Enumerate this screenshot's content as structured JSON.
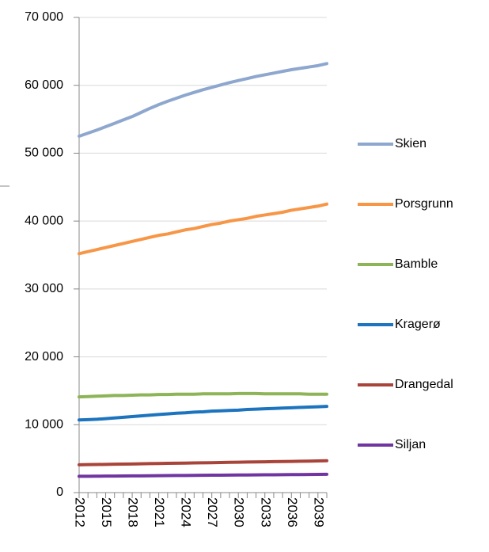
{
  "chart_data": {
    "type": "line",
    "categories": [
      "2012",
      null,
      null,
      "2015",
      null,
      null,
      "2018",
      null,
      null,
      "2021",
      null,
      null,
      "2024",
      null,
      null,
      "2027",
      null,
      null,
      "2030",
      null,
      null,
      "2033",
      null,
      null,
      "2036",
      null,
      null,
      "2039",
      null
    ],
    "series": [
      {
        "name": "Skien",
        "color": "#8EA7CE",
        "values": [
          52500,
          52950,
          53400,
          53900,
          54400,
          54900,
          55400,
          56000,
          56600,
          57150,
          57650,
          58100,
          58550,
          58950,
          59350,
          59700,
          60050,
          60400,
          60700,
          61000,
          61300,
          61550,
          61800,
          62050,
          62300,
          62500,
          62700,
          62900,
          63200
        ]
      },
      {
        "name": "Porsgrunn",
        "color": "#F79646",
        "values": [
          35200,
          35500,
          35800,
          36100,
          36400,
          36700,
          37000,
          37300,
          37600,
          37900,
          38100,
          38400,
          38700,
          38900,
          39200,
          39500,
          39700,
          40000,
          40200,
          40400,
          40700,
          40900,
          41100,
          41300,
          41600,
          41800,
          42000,
          42200,
          42500
        ]
      },
      {
        "name": "Bamble",
        "color": "#8DB457",
        "values": [
          14100,
          14150,
          14200,
          14250,
          14300,
          14300,
          14350,
          14400,
          14400,
          14450,
          14450,
          14500,
          14500,
          14500,
          14550,
          14550,
          14550,
          14550,
          14600,
          14600,
          14600,
          14550,
          14550,
          14550,
          14550,
          14550,
          14500,
          14500,
          14500
        ]
      },
      {
        "name": "Kragerø",
        "color": "#1C73BE",
        "values": [
          10700,
          10750,
          10800,
          10900,
          11000,
          11100,
          11200,
          11300,
          11400,
          11500,
          11600,
          11700,
          11750,
          11850,
          11900,
          12000,
          12050,
          12100,
          12150,
          12250,
          12300,
          12350,
          12400,
          12450,
          12500,
          12550,
          12600,
          12650,
          12700
        ]
      },
      {
        "name": "Drangedal",
        "color": "#A9443A",
        "values": [
          4100,
          4120,
          4140,
          4160,
          4180,
          4200,
          4220,
          4250,
          4270,
          4290,
          4310,
          4330,
          4350,
          4370,
          4390,
          4410,
          4430,
          4460,
          4480,
          4500,
          4520,
          4540,
          4560,
          4580,
          4600,
          4620,
          4640,
          4670,
          4700
        ]
      },
      {
        "name": "Siljan",
        "color": "#7035A0",
        "values": [
          2400,
          2410,
          2420,
          2430,
          2440,
          2450,
          2460,
          2470,
          2480,
          2490,
          2510,
          2520,
          2530,
          2540,
          2550,
          2560,
          2570,
          2580,
          2590,
          2600,
          2610,
          2620,
          2630,
          2640,
          2650,
          2660,
          2670,
          2680,
          2700
        ]
      }
    ],
    "ylim": [
      0,
      70000
    ],
    "yticks": [
      0,
      {
        "value": 10000,
        "label": "10 000"
      },
      {
        "value": 20000,
        "label": "20 000"
      },
      {
        "value": 30000,
        "label": "30 000"
      },
      {
        "value": 40000,
        "label": "40 000"
      },
      {
        "value": 50000,
        "label": "50 000"
      },
      {
        "value": 60000,
        "label": "60 000"
      },
      {
        "value": 70000,
        "label": "70 000"
      }
    ],
    "grid": true,
    "legend": "right"
  }
}
